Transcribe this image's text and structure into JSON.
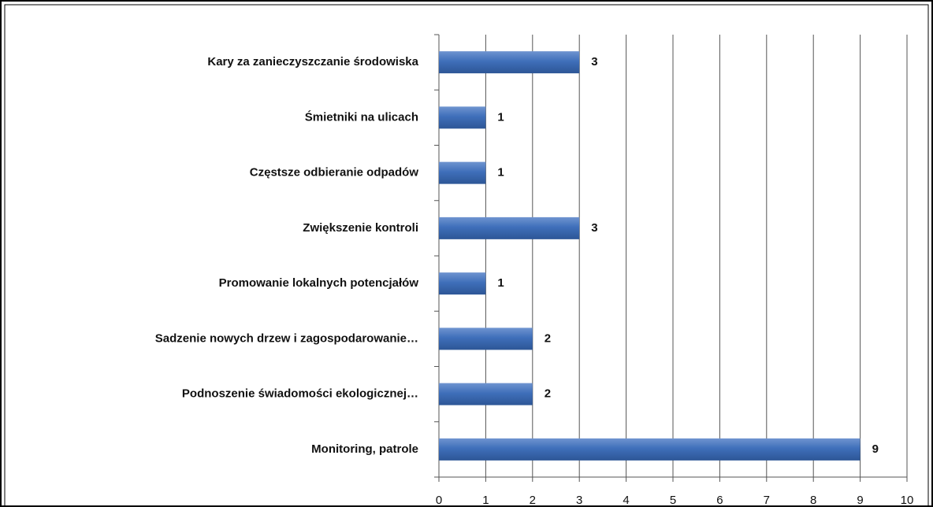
{
  "chart_data": {
    "type": "bar",
    "orientation": "horizontal",
    "categories": [
      "Kary za zanieczyszczanie środowiska",
      "Śmietniki na ulicach",
      "Częstsze odbieranie odpadów",
      "Zwiększenie kontroli",
      "Promowanie lokalnych potencjałów",
      "Sadzenie nowych drzew i zagospodarowanie…",
      "Podnoszenie świadomości ekologicznej…",
      "Monitoring, patrole"
    ],
    "values": [
      3,
      1,
      1,
      3,
      1,
      2,
      2,
      9
    ],
    "color": "#3f6fba",
    "xlim": [
      0,
      10
    ],
    "xticks": [
      0,
      1,
      2,
      3,
      4,
      5,
      6,
      7,
      8,
      9,
      10
    ],
    "grid": true
  }
}
